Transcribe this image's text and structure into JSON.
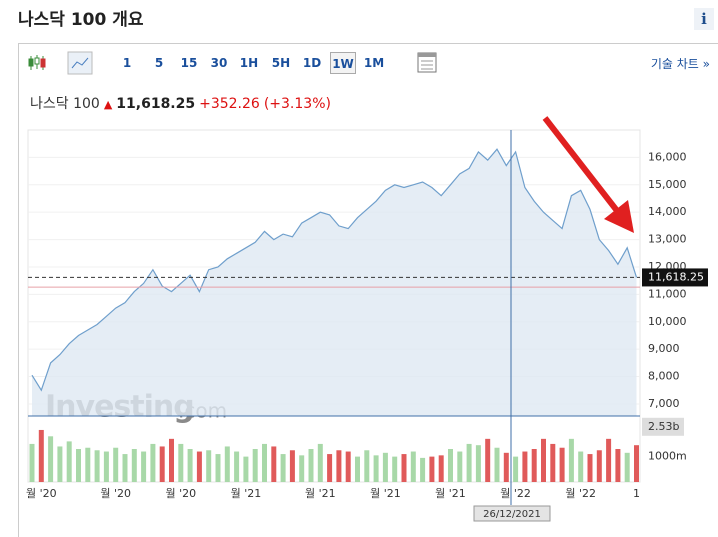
{
  "header": {
    "title": "나스닥 100 개요",
    "info": "i"
  },
  "toolbar": {
    "intervals": [
      "1",
      "5",
      "15",
      "30",
      "1H",
      "5H",
      "1D",
      "1W",
      "1M"
    ],
    "technical_chart": "기술 차트 »"
  },
  "price": {
    "name": "나스닥 100",
    "last": "11,618.25",
    "change": "+352.26",
    "change_percent": "(+3.13%)"
  },
  "chart_data": {
    "type": "area",
    "watermark": "Investing",
    "watermark_suffix": ".com",
    "categories": [
      null,
      "월 '20",
      null,
      null,
      null,
      null,
      null,
      null,
      null,
      "월 '20",
      null,
      null,
      null,
      null,
      null,
      null,
      "월 '20",
      null,
      null,
      null,
      null,
      null,
      null,
      "월 '21",
      null,
      null,
      null,
      null,
      null,
      null,
      null,
      "월 '21",
      null,
      null,
      null,
      null,
      null,
      null,
      "월 '21",
      null,
      null,
      null,
      null,
      null,
      null,
      "월 '21",
      null,
      null,
      null,
      null,
      null,
      null,
      "월 '22",
      null,
      null,
      null,
      null,
      null,
      null,
      "월 '22",
      null,
      null,
      null,
      null,
      null,
      "1"
    ],
    "series": [
      {
        "color": "#6f9fcc",
        "fill": "#dee8f2",
        "values": [
          8050,
          7500,
          8500,
          8800,
          9200,
          9500,
          9700,
          9900,
          10200,
          10500,
          10700,
          11100,
          11400,
          11900,
          11300,
          11100,
          11400,
          11700,
          11100,
          11900,
          12000,
          12300,
          12500,
          12700,
          12900,
          13300,
          13000,
          13200,
          13100,
          13600,
          13800,
          14000,
          13900,
          13500,
          13400,
          13800,
          14100,
          14400,
          14800,
          15000,
          14900,
          15000,
          15100,
          14900,
          14600,
          15000,
          15400,
          15600,
          16200,
          15900,
          16300,
          15700,
          16200,
          14900,
          14400,
          14000,
          13700,
          13400,
          14600,
          14800,
          14100,
          13000,
          12600,
          12100,
          12700,
          11618.25
        ]
      }
    ],
    "ylim": [
      6560,
      17000
    ],
    "yticks": [
      {
        "value": 7000,
        "label": "7,000"
      },
      {
        "value": 8000,
        "label": "8,000"
      },
      {
        "value": 9000,
        "label": "9,000"
      },
      {
        "value": 10000,
        "label": "10,000"
      },
      {
        "value": 11000,
        "label": "11,000"
      },
      {
        "value": 12000,
        "label": "12,000"
      },
      {
        "value": 13000,
        "label": "13,000"
      },
      {
        "value": 14000,
        "label": "14,000"
      },
      {
        "value": 15000,
        "label": "15,000"
      },
      {
        "value": 16000,
        "label": "16,000"
      }
    ],
    "grid": true,
    "price_line": {
      "value": 11618.25,
      "label": "11,618.25"
    },
    "prev_close_line": 11265.99,
    "volume": [
      1500,
      2050,
      1800,
      1400,
      1600,
      1300,
      1350,
      1250,
      1200,
      1350,
      1100,
      1300,
      1200,
      1500,
      1400,
      1700,
      1500,
      1300,
      1200,
      1250,
      1100,
      1400,
      1200,
      1000,
      1300,
      1500,
      1400,
      1100,
      1250,
      1050,
      1300,
      1500,
      1100,
      1250,
      1200,
      1000,
      1250,
      1050,
      1150,
      1000,
      1100,
      1200,
      950,
      1000,
      1050,
      1300,
      1200,
      1500,
      1450,
      1700,
      1350,
      1150,
      1000,
      1200,
      1300,
      1700,
      1500,
      1350,
      1700,
      1200,
      1100,
      1250,
      1700,
      1300,
      1150,
      1450
    ],
    "volume_up_color": "#a8d8a8",
    "volume_down_color": "#e05a5a",
    "vlim": [
      0,
      2600
    ],
    "vticks": [
      {
        "value": 1000,
        "label": "1000m"
      }
    ],
    "volume_marker": {
      "value": 2530,
      "label": "2.53b"
    },
    "crosshair_date": "26/12/2021"
  }
}
